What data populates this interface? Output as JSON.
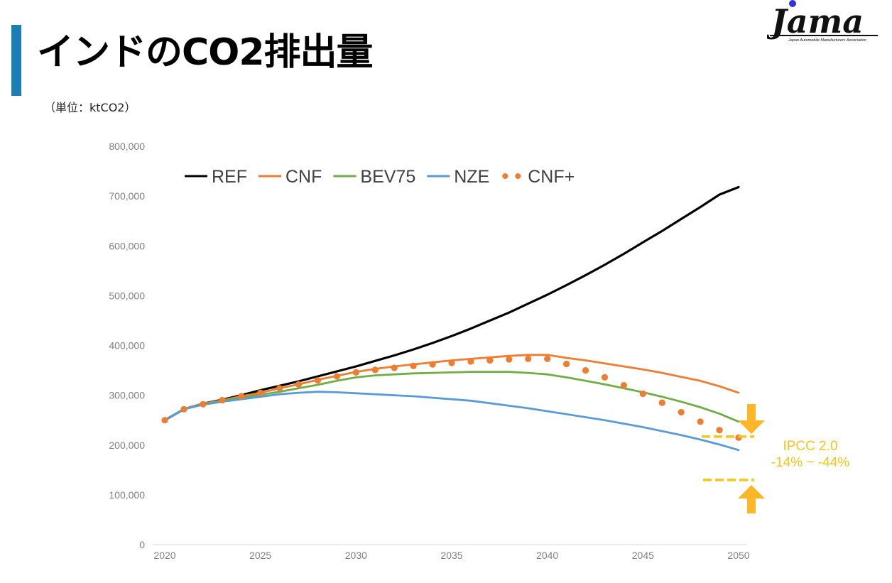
{
  "page": {
    "title": "インドのCO2排出量",
    "unit_label": "（単位：ktCO2）",
    "accent_color": "#1a7fb5"
  },
  "logo": {
    "text": "Jama",
    "subtitle": "Japan Automobile Manufacturers Association",
    "dot_color": "#2b34d6"
  },
  "annotation": {
    "line1": "IPCC 2.0",
    "line2": "-14% ~ -44%",
    "color": "#f5c518",
    "upper_level": 217000,
    "lower_level": 130000
  },
  "chart_data": {
    "type": "line",
    "title": "",
    "xlabel": "",
    "ylabel": "",
    "xlim": [
      2020,
      2050
    ],
    "ylim": [
      0,
      800000
    ],
    "x_ticks": [
      "2020",
      "2025",
      "2030",
      "2035",
      "2040",
      "2045",
      "2050"
    ],
    "y_ticks": [
      "0",
      "100,000",
      "200,000",
      "300,000",
      "400,000",
      "500,000",
      "600,000",
      "700,000",
      "800,000"
    ],
    "grid": false,
    "legend_position": "top-left",
    "x": [
      2020,
      2021,
      2022,
      2023,
      2024,
      2025,
      2026,
      2027,
      2028,
      2029,
      2030,
      2031,
      2032,
      2033,
      2034,
      2035,
      2036,
      2037,
      2038,
      2039,
      2040,
      2041,
      2042,
      2043,
      2044,
      2045,
      2046,
      2047,
      2048,
      2049,
      2050
    ],
    "series": [
      {
        "name": "REF",
        "color": "#000000",
        "style": "solid",
        "values": [
          250000,
          272000,
          283000,
          291000,
          300000,
          310000,
          319000,
          328000,
          338000,
          348000,
          358000,
          369000,
          380000,
          392000,
          405000,
          419000,
          434000,
          450000,
          466000,
          484000,
          502000,
          521000,
          541000,
          562000,
          584000,
          607000,
          630000,
          654000,
          678000,
          703000,
          718000
        ]
      },
      {
        "name": "CNF",
        "color": "#ed7d31",
        "style": "solid",
        "values": [
          250000,
          272000,
          283000,
          290000,
          298000,
          305000,
          314000,
          322000,
          331000,
          339000,
          347000,
          353000,
          358000,
          362000,
          366000,
          370000,
          373000,
          376000,
          379000,
          381000,
          381000,
          375000,
          370000,
          364000,
          358000,
          352000,
          345000,
          337000,
          329000,
          318000,
          305000
        ]
      },
      {
        "name": "BEV75",
        "color": "#70ad47",
        "style": "solid",
        "values": [
          250000,
          272000,
          282000,
          289000,
          295000,
          301000,
          307000,
          314000,
          321000,
          329000,
          336000,
          340000,
          342000,
          344000,
          345000,
          346000,
          347000,
          347000,
          347000,
          345000,
          342000,
          336000,
          329000,
          322000,
          314000,
          306000,
          297000,
          287000,
          276000,
          263000,
          247000
        ]
      },
      {
        "name": "NZE",
        "color": "#5b9bd5",
        "style": "solid",
        "values": [
          250000,
          272000,
          281000,
          287000,
          292000,
          297000,
          302000,
          305000,
          307000,
          306000,
          304000,
          302000,
          300000,
          298000,
          295000,
          292000,
          289000,
          284000,
          279000,
          274000,
          268000,
          262000,
          256000,
          250000,
          243000,
          236000,
          228000,
          220000,
          211000,
          201000,
          190000
        ]
      },
      {
        "name": "CNF+",
        "color": "#ed7d31",
        "style": "dotted",
        "values": [
          250000,
          272000,
          282000,
          290000,
          298000,
          305000,
          314000,
          322000,
          330000,
          338000,
          346000,
          351000,
          355000,
          359000,
          362000,
          365000,
          368000,
          370000,
          372000,
          373000,
          373000,
          363000,
          350000,
          336000,
          320000,
          303000,
          285000,
          266000,
          247000,
          230000,
          215000
        ]
      }
    ]
  }
}
